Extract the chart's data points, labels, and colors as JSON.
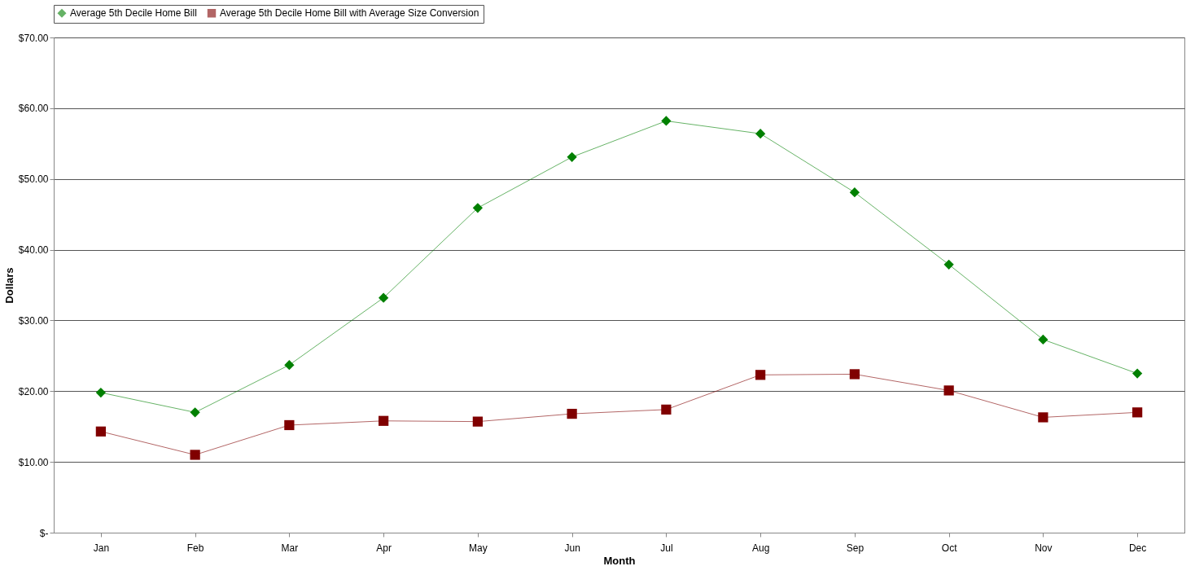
{
  "chart_data": {
    "type": "line",
    "xlabel": "Month",
    "ylabel": "Dollars",
    "categories": [
      "Jan",
      "Feb",
      "Mar",
      "Apr",
      "May",
      "Jun",
      "Jul",
      "Aug",
      "Sep",
      "Oct",
      "Nov",
      "Dec"
    ],
    "series": [
      {
        "name": "Average 5th Decile Home Bill",
        "color": "#008000",
        "marker": "diamond",
        "values": [
          19.8,
          17.0,
          23.7,
          33.2,
          45.9,
          53.1,
          58.2,
          56.4,
          48.1,
          37.9,
          27.3,
          22.5
        ]
      },
      {
        "name": "Average 5th Decile Home Bill with Average Size Conversion",
        "color": "#800000",
        "marker": "square",
        "values": [
          14.3,
          11.0,
          15.2,
          15.8,
          15.7,
          16.8,
          17.4,
          22.3,
          22.4,
          20.1,
          16.3,
          17.0
        ]
      }
    ],
    "ylim": [
      0,
      70
    ],
    "yticks": [
      {
        "value": 0,
        "label": "$-"
      },
      {
        "value": 10,
        "label": "$10.00"
      },
      {
        "value": 20,
        "label": "$20.00"
      },
      {
        "value": 30,
        "label": "$30.00"
      },
      {
        "value": 40,
        "label": "$40.00"
      },
      {
        "value": 50,
        "label": "$50.00"
      },
      {
        "value": 60,
        "label": "$60.00"
      },
      {
        "value": 70,
        "label": "$70.00"
      }
    ],
    "grid": "y",
    "legend": "top",
    "line_style": "solid"
  }
}
